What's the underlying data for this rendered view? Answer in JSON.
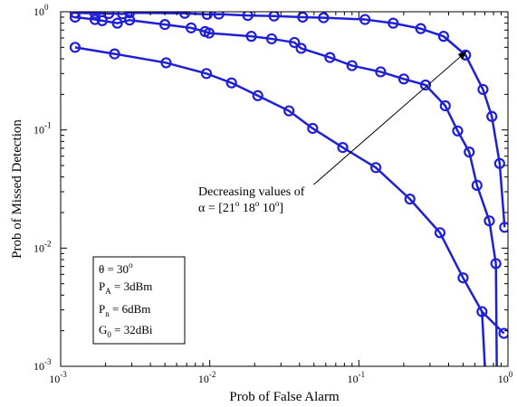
{
  "chart_data": {
    "type": "line",
    "xlabel": "Prob of False Alarm",
    "ylabel": "Prob of Missed Detection",
    "xscale": "log",
    "yscale": "log",
    "xlim": [
      0.001,
      1
    ],
    "ylim": [
      0.001,
      1
    ],
    "x_ticks": [
      {
        "base": "10",
        "exp": "-3"
      },
      {
        "base": "10",
        "exp": "-2"
      },
      {
        "base": "10",
        "exp": "-1"
      },
      {
        "base": "10",
        "exp": "0"
      }
    ],
    "y_ticks": [
      {
        "base": "10",
        "exp": "-3"
      },
      {
        "base": "10",
        "exp": "-2"
      },
      {
        "base": "10",
        "exp": "-1"
      },
      {
        "base": "10",
        "exp": "0"
      }
    ],
    "grid": false,
    "line_color": "#1f1fd6",
    "series": [
      {
        "x": [
          0.00125,
          0.0017,
          0.0021,
          0.0026,
          0.0029,
          0.0068,
          0.0096,
          0.0115,
          0.018,
          0.027,
          0.042,
          0.058,
          0.11,
          0.17,
          0.26,
          0.37,
          0.52,
          0.68,
          0.78,
          0.88,
          0.95
        ],
        "y": [
          0.98,
          0.97,
          0.965,
          0.96,
          0.98,
          0.97,
          0.95,
          0.955,
          0.93,
          0.92,
          0.9,
          0.89,
          0.86,
          0.8,
          0.72,
          0.62,
          0.43,
          0.22,
          0.13,
          0.052,
          0.015
        ]
      },
      {
        "x": [
          0.00125,
          0.0017,
          0.0019,
          0.0024,
          0.0029,
          0.005,
          0.0075,
          0.0093,
          0.0099,
          0.019,
          0.026,
          0.037,
          0.041,
          0.064,
          0.09,
          0.14,
          0.2,
          0.28,
          0.38,
          0.46,
          0.55,
          0.62,
          0.75,
          0.83
        ],
        "y": [
          0.9,
          0.86,
          0.84,
          0.8,
          0.85,
          0.78,
          0.73,
          0.68,
          0.66,
          0.62,
          0.59,
          0.55,
          0.49,
          0.41,
          0.35,
          0.31,
          0.27,
          0.24,
          0.16,
          0.098,
          0.065,
          0.034,
          0.017,
          0.0074
        ]
      },
      {
        "x": [
          0.00125,
          0.0023,
          0.0051,
          0.0095,
          0.014,
          0.021,
          0.034,
          0.049,
          0.078,
          0.13,
          0.22,
          0.35,
          0.5,
          0.67,
          0.94
        ],
        "y": [
          0.5,
          0.44,
          0.37,
          0.3,
          0.25,
          0.195,
          0.145,
          0.103,
          0.071,
          0.048,
          0.026,
          0.0135,
          0.0056,
          0.0029,
          0.0019
        ]
      }
    ],
    "annotation": {
      "line1": "Decreasing values of",
      "line2_prefix": "α = [21",
      "deg": "o",
      "v2": " 18",
      "v3": " 10",
      "line2_suffix": "]"
    },
    "legend_box": {
      "theta_sym": "θ = 30",
      "theta_sup": "o",
      "pa_sym": "P",
      "pa_sub": "A",
      "pa_val": " = 3dBm",
      "pn_sym": "P",
      "pn_sub": "n",
      "pn_val": " = 6dBm",
      "g0_sym": "G",
      "g0_sub": "0",
      "g0_val": " = 32dBi"
    }
  }
}
